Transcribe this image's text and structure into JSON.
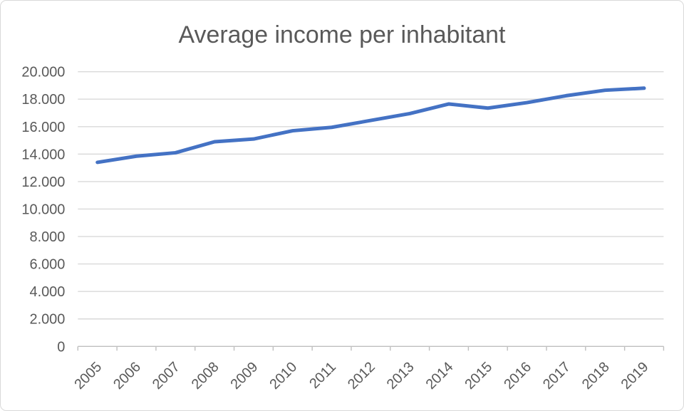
{
  "chart": {
    "title": "Average income per inhabitant",
    "colors": {
      "line": "#4472C4",
      "grid": "#D9D9D9",
      "axis": "#BFBFBF",
      "text": "#595959",
      "background": "#FFFFFF",
      "border": "#D9D9D9"
    }
  },
  "chart_data": {
    "type": "line",
    "title": "Average income per inhabitant",
    "x": [
      "2005",
      "2006",
      "2007",
      "2008",
      "2009",
      "2010",
      "2011",
      "2012",
      "2013",
      "2014",
      "2015",
      "2016",
      "2017",
      "2018",
      "2019"
    ],
    "series": [
      {
        "name": "Average income per inhabitant",
        "values": [
          13400,
          13850,
          14100,
          14900,
          15100,
          15700,
          15950,
          16450,
          16950,
          17650,
          17350,
          17750,
          18250,
          18650,
          18800
        ]
      }
    ],
    "ylim": [
      0,
      20000
    ],
    "y_tick_step": 2000,
    "y_tick_labels": [
      "0",
      "2.000",
      "4.000",
      "6.000",
      "8.000",
      "10.000",
      "12.000",
      "14.000",
      "16.000",
      "18.000",
      "20.000"
    ],
    "xlabel": "",
    "ylabel": "",
    "grid": true,
    "legend_position": "none",
    "x_label_rotation_deg": -45
  }
}
